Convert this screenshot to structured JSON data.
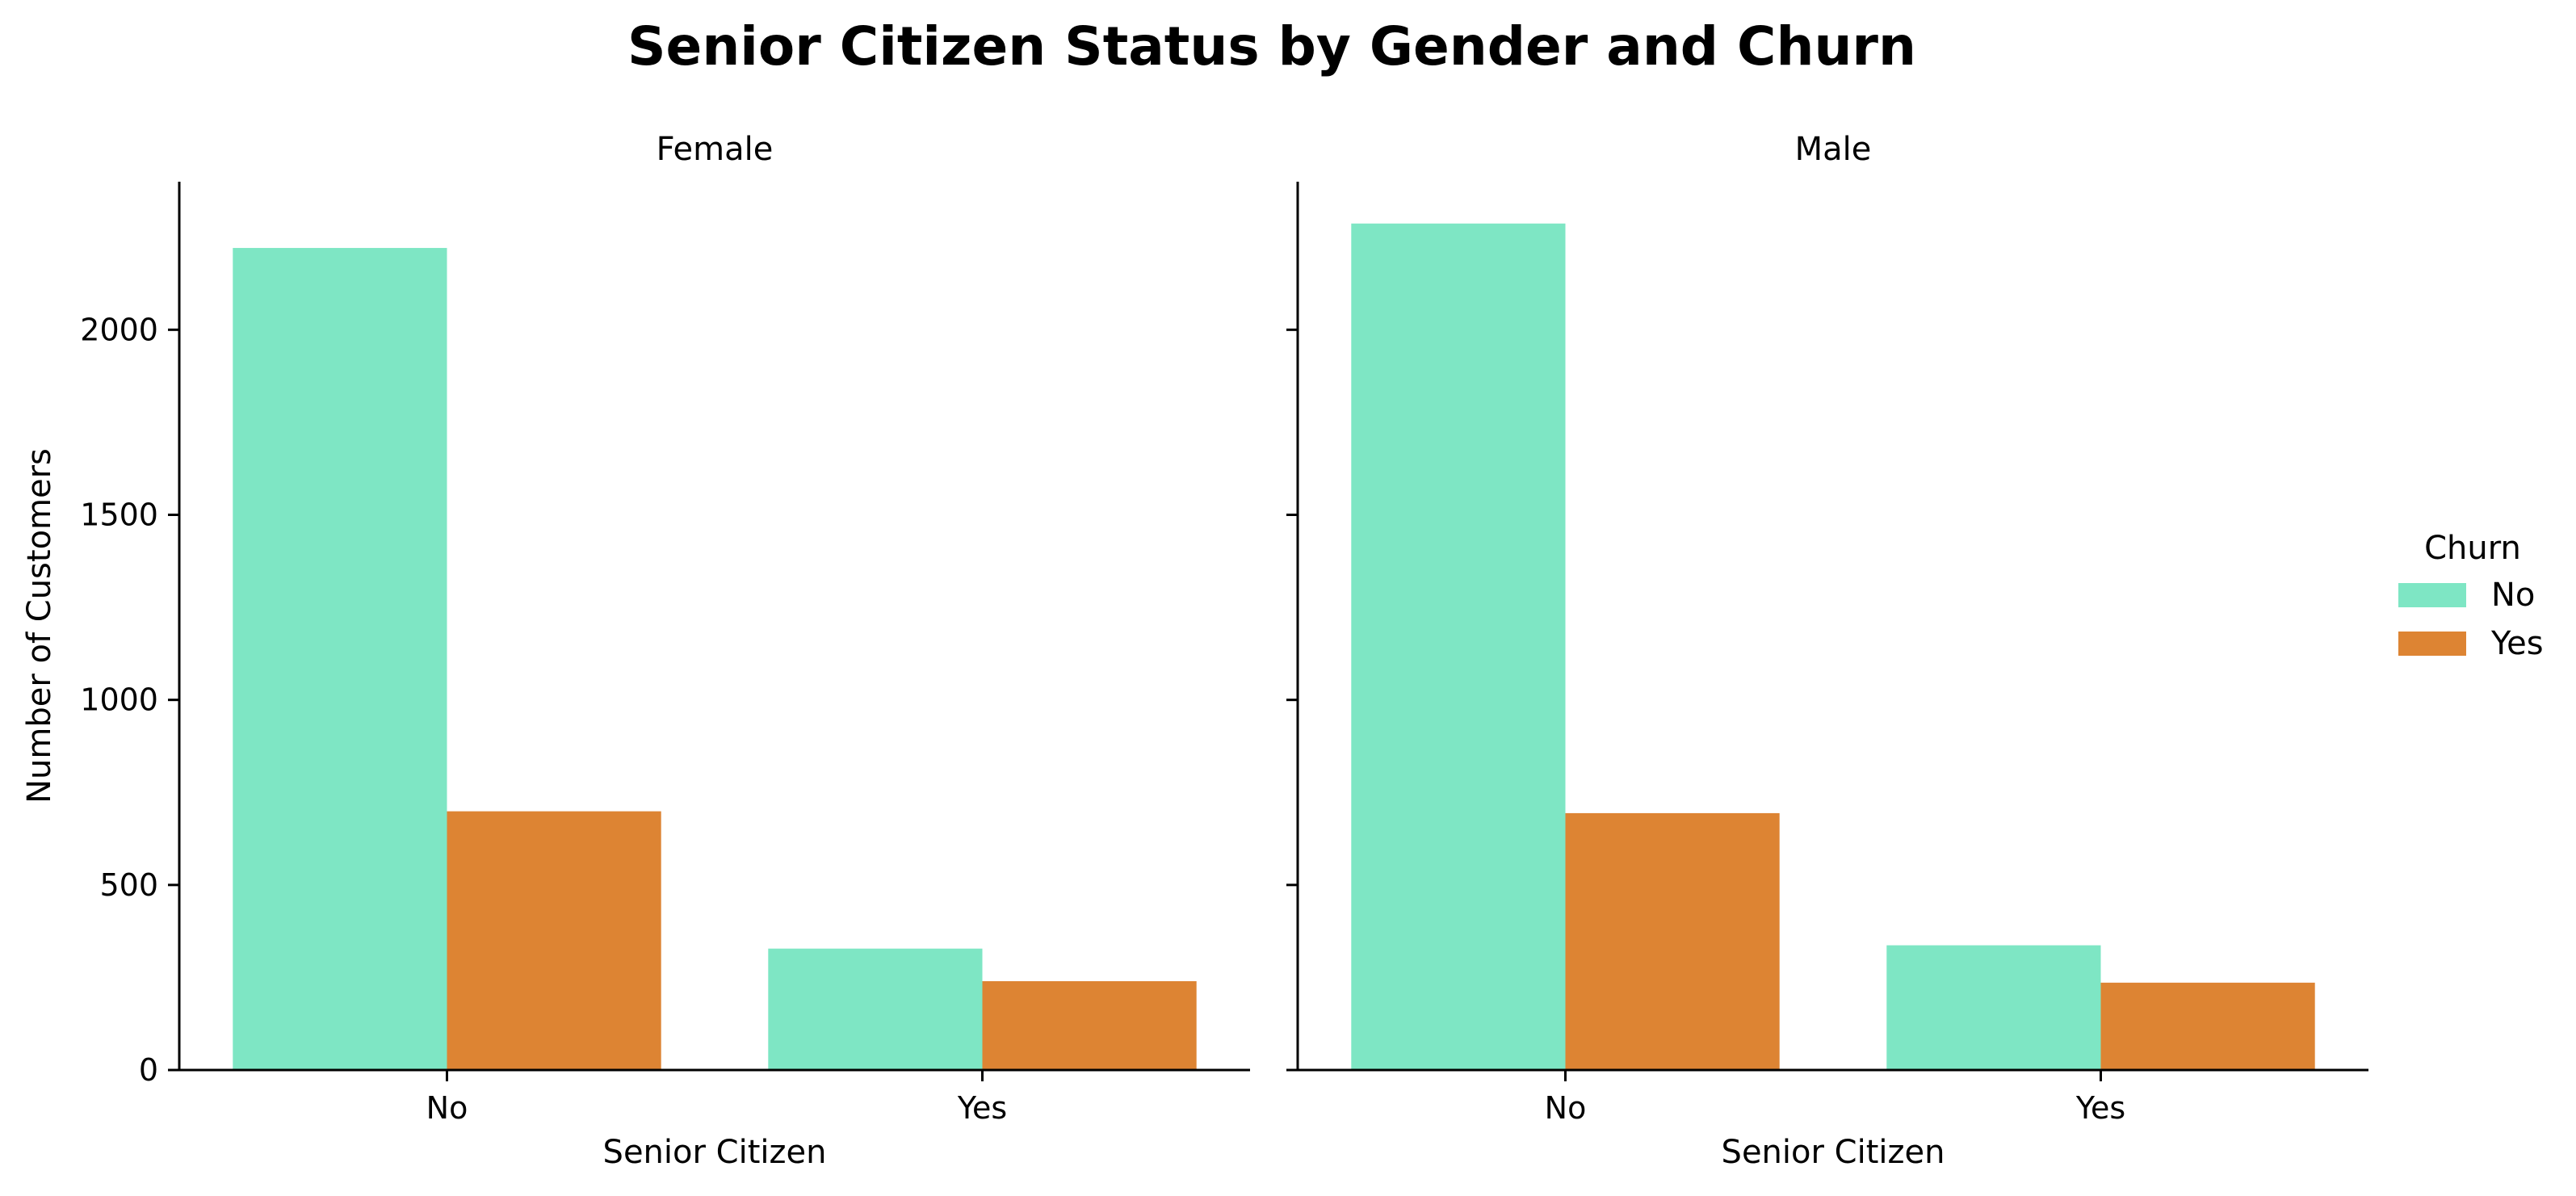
{
  "chart_data": {
    "type": "bar",
    "title": "Senior Citizen Status by Gender and Churn",
    "facets": [
      {
        "name": "Female",
        "categories": [
          "No",
          "Yes"
        ],
        "series": [
          {
            "name": "No",
            "values": [
              2221,
              328
            ]
          },
          {
            "name": "Yes",
            "values": [
              699,
              240
            ]
          }
        ]
      },
      {
        "name": "Male",
        "categories": [
          "No",
          "Yes"
        ],
        "series": [
          {
            "name": "No",
            "values": [
              2287,
              337
            ]
          },
          {
            "name": "Yes",
            "values": [
              694,
              236
            ]
          }
        ]
      }
    ],
    "xlabel": "Senior Citizen",
    "ylabel": "Number of Customers",
    "ylim": [
      0,
      2400
    ],
    "yticks": [
      0,
      500,
      1000,
      1500,
      2000
    ],
    "grid": false,
    "shared_y": true,
    "legend": {
      "title": "Churn",
      "placement": "right",
      "entries": [
        "No",
        "Yes"
      ]
    },
    "colors": {
      "No": "#7ee6c4",
      "Yes": "#dd8433"
    }
  }
}
